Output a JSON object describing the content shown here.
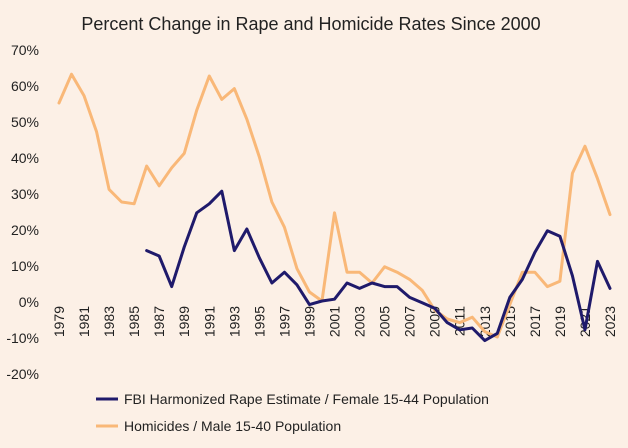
{
  "chart_data": {
    "type": "line",
    "title": "Percent Change in Rape and Homicide Rates Since 2000",
    "xlabel": "",
    "ylabel": "",
    "ylim": [
      -20,
      70
    ],
    "ytick_values": [
      -20,
      -10,
      0,
      10,
      20,
      30,
      40,
      50,
      60,
      70
    ],
    "ytick_labels": [
      "-20%",
      "-10%",
      "0%",
      "10%",
      "20%",
      "30%",
      "40%",
      "50%",
      "60%",
      "70%"
    ],
    "xlim": [
      1979,
      2023
    ],
    "xtick_labels": [
      "1979",
      "1981",
      "1983",
      "1985",
      "1987",
      "1989",
      "1991",
      "1993",
      "1995",
      "1997",
      "1999",
      "2001",
      "2003",
      "2005",
      "2007",
      "2009",
      "2011",
      "2013",
      "2015",
      "2017",
      "2019",
      "2021",
      "2023"
    ],
    "grid": false,
    "legend_position": "bottom",
    "series": [
      {
        "name": "FBI Harmonized Rape Estimate / Female 15-44 Population",
        "color": "#1f1a6b",
        "x": [
          1986,
          1987,
          1988,
          1989,
          1990,
          1991,
          1992,
          1993,
          1994,
          1995,
          1996,
          1997,
          1998,
          1999,
          2000,
          2001,
          2002,
          2003,
          2004,
          2005,
          2006,
          2007,
          2008,
          2009,
          2010,
          2011,
          2012,
          2013,
          2014,
          2015,
          2016,
          2017,
          2018,
          2019,
          2020,
          2021,
          2022,
          2023
        ],
        "values": [
          14,
          12.5,
          4,
          15,
          24.5,
          27,
          30.5,
          14,
          20,
          12,
          5,
          8,
          4.5,
          -1,
          0,
          0.5,
          5,
          3.5,
          5,
          4,
          4,
          1,
          -0.5,
          -2,
          -6,
          -8,
          -7.5,
          -11,
          -9,
          1,
          6,
          13.5,
          19.5,
          18,
          7,
          -8,
          11,
          3.5
        ]
      },
      {
        "name": "Homicides / Male 15-40 Population",
        "color": "#f9b878",
        "x": [
          1979,
          1980,
          1981,
          1982,
          1983,
          1984,
          1985,
          1986,
          1987,
          1988,
          1989,
          1990,
          1991,
          1992,
          1993,
          1994,
          1995,
          1996,
          1997,
          1998,
          1999,
          2000,
          2001,
          2002,
          2003,
          2004,
          2005,
          2006,
          2007,
          2008,
          2009,
          2010,
          2011,
          2012,
          2013,
          2014,
          2015,
          2016,
          2017,
          2018,
          2019,
          2020,
          2021,
          2022,
          2023
        ],
        "values": [
          55,
          63,
          57,
          47,
          31,
          27.5,
          27,
          37.5,
          32,
          37,
          41,
          53,
          62.5,
          56,
          59,
          50.5,
          40,
          27.5,
          20.5,
          9,
          2.5,
          0,
          24.5,
          8,
          8,
          5,
          9.5,
          8,
          6,
          3,
          -2.5,
          -5,
          -6,
          -4.5,
          -8.5,
          -10,
          -1,
          8,
          8,
          4,
          5.5,
          35.5,
          43,
          34,
          24
        ]
      }
    ]
  }
}
